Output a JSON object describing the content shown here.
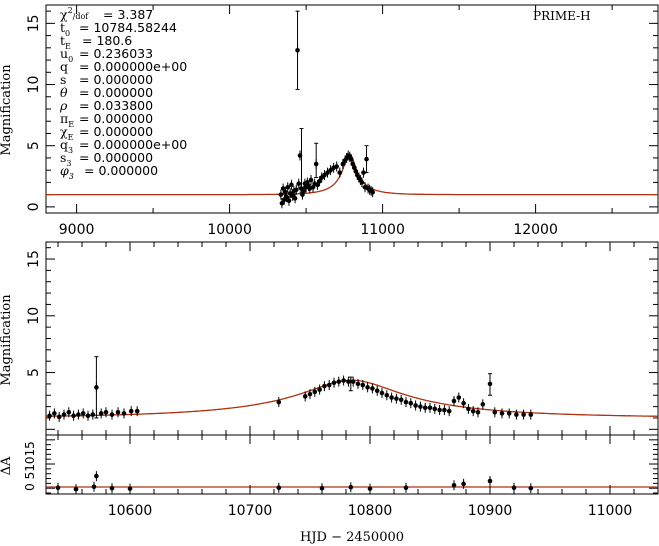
{
  "chart_data": [
    {
      "type": "line",
      "panel": "top",
      "ylabel": "Magnification",
      "xlim": [
        8800,
        12800
      ],
      "ylim": [
        -0.5,
        16.5
      ],
      "xticks": [
        9000,
        10000,
        11000,
        12000
      ],
      "yticks": [
        0,
        5,
        10,
        15
      ],
      "label": "PRIME-H",
      "params": [
        {
          "label": "χ²/dof",
          "value": "= 3.387"
        },
        {
          "label": "t₀",
          "value": "= 10784.58244"
        },
        {
          "label": "t_E",
          "value": "= 180.6"
        },
        {
          "label": "u₀",
          "value": "= 0.236033"
        },
        {
          "label": "q",
          "value": "= 0.000000e+00"
        },
        {
          "label": "s",
          "value": "= 0.000000"
        },
        {
          "label": "θ",
          "value": "= 0.000000"
        },
        {
          "label": "ρ",
          "value": "= 0.033800"
        },
        {
          "label": "π_E",
          "value": "= 0.000000"
        },
        {
          "label": "χ_E",
          "value": "= 0.000000"
        },
        {
          "label": "q₃",
          "value": "= 0.000000e+00"
        },
        {
          "label": "s₃",
          "value": "= 0.000000"
        },
        {
          "label": "φ₃",
          "value": "= 0.000000"
        }
      ],
      "model": {
        "t0": 10784.58244,
        "tE": 180.6,
        "u0": 0.236033,
        "color": "#b03010"
      },
      "points": [
        [
          10335,
          1.0
        ],
        [
          10342,
          0.3
        ],
        [
          10350,
          1.5
        ],
        [
          10358,
          0.6
        ],
        [
          10365,
          1.2
        ],
        [
          10372,
          0.8
        ],
        [
          10380,
          1.6
        ],
        [
          10388,
          0.5
        ],
        [
          10396,
          1.1
        ],
        [
          10404,
          1.8
        ],
        [
          10412,
          0.9
        ],
        [
          10420,
          1.3
        ],
        [
          10428,
          0.7
        ],
        [
          10436,
          1.4
        ],
        [
          10444,
          12.8
        ],
        [
          10452,
          1.9
        ],
        [
          10460,
          4.2
        ],
        [
          10468,
          1.5
        ],
        [
          10476,
          1.0
        ],
        [
          10484,
          1.3
        ],
        [
          10492,
          1.9
        ],
        [
          10500,
          1.6
        ],
        [
          10508,
          2.0
        ],
        [
          10516,
          1.7
        ],
        [
          10524,
          1.5
        ],
        [
          10532,
          2.2
        ],
        [
          10545,
          1.6
        ],
        [
          10556,
          1.9
        ],
        [
          10566,
          3.5
        ],
        [
          10574,
          1.8
        ],
        [
          10588,
          2.1
        ],
        [
          10602,
          2.4
        ],
        [
          10620,
          2.6
        ],
        [
          10640,
          2.8
        ],
        [
          10660,
          3.0
        ],
        [
          10680,
          3.2
        ],
        [
          10700,
          3.3
        ],
        [
          10720,
          2.8
        ],
        [
          10740,
          3.5
        ],
        [
          10755,
          3.8
        ],
        [
          10765,
          4.0
        ],
        [
          10775,
          4.2
        ],
        [
          10785,
          4.1
        ],
        [
          10795,
          3.9
        ],
        [
          10805,
          3.5
        ],
        [
          10815,
          3.2
        ],
        [
          10825,
          2.9
        ],
        [
          10835,
          2.6
        ],
        [
          10845,
          2.4
        ],
        [
          10855,
          2.2
        ],
        [
          10865,
          2.0
        ],
        [
          10875,
          2.8
        ],
        [
          10885,
          1.6
        ],
        [
          10895,
          3.9
        ],
        [
          10905,
          1.5
        ],
        [
          10915,
          1.4
        ],
        [
          10925,
          1.3
        ],
        [
          10935,
          1.2
        ]
      ],
      "big_errorbars": [
        [
          10444,
          9.6,
          16.0
        ],
        [
          10470,
          1.2,
          6.4
        ],
        [
          10566,
          2.4,
          5.2
        ],
        [
          10895,
          2.8,
          5.0
        ]
      ]
    },
    {
      "type": "line",
      "panel": "middle",
      "ylabel": "Magnification",
      "xlim": [
        10530,
        11040
      ],
      "ylim": [
        -0.5,
        16.5
      ],
      "xticks": [
        10600,
        10700,
        10800,
        10900,
        11000
      ],
      "yticks": [
        5,
        10,
        15
      ],
      "model": {
        "t0": 10784.58244,
        "tE": 180.6,
        "u0": 0.236033,
        "color": "#b03010"
      },
      "points": [
        [
          10533,
          1.2
        ],
        [
          10537,
          1.4
        ],
        [
          10541,
          1.1
        ],
        [
          10545,
          1.3
        ],
        [
          10549,
          1.5
        ],
        [
          10553,
          1.2
        ],
        [
          10557,
          1.3
        ],
        [
          10561,
          1.4
        ],
        [
          10565,
          1.2
        ],
        [
          10569,
          1.3
        ],
        [
          10572,
          3.7
        ],
        [
          10576,
          1.4
        ],
        [
          10580,
          1.5
        ],
        [
          10585,
          1.3
        ],
        [
          10590,
          1.5
        ],
        [
          10595,
          1.4
        ],
        [
          10601,
          1.6
        ],
        [
          10606,
          1.6
        ],
        [
          10724,
          2.4
        ],
        [
          10746,
          2.9
        ],
        [
          10750,
          3.1
        ],
        [
          10754,
          3.3
        ],
        [
          10758,
          3.5
        ],
        [
          10762,
          3.8
        ],
        [
          10766,
          3.9
        ],
        [
          10770,
          4.1
        ],
        [
          10774,
          4.2
        ],
        [
          10778,
          4.3
        ],
        [
          10782,
          4.2
        ],
        [
          10786,
          4.2
        ],
        [
          10790,
          4.0
        ],
        [
          10794,
          3.9
        ],
        [
          10798,
          3.7
        ],
        [
          10802,
          3.6
        ],
        [
          10806,
          3.4
        ],
        [
          10810,
          3.2
        ],
        [
          10814,
          3.0
        ],
        [
          10818,
          2.8
        ],
        [
          10822,
          2.7
        ],
        [
          10826,
          2.6
        ],
        [
          10830,
          2.4
        ],
        [
          10834,
          2.3
        ],
        [
          10838,
          2.1
        ],
        [
          10842,
          2.0
        ],
        [
          10846,
          1.9
        ],
        [
          10850,
          1.9
        ],
        [
          10854,
          1.8
        ],
        [
          10858,
          1.7
        ],
        [
          10862,
          1.7
        ],
        [
          10866,
          1.6
        ],
        [
          10870,
          2.5
        ],
        [
          10874,
          2.8
        ],
        [
          10878,
          2.3
        ],
        [
          10882,
          1.8
        ],
        [
          10886,
          1.6
        ],
        [
          10890,
          1.5
        ],
        [
          10894,
          2.2
        ],
        [
          10900,
          4.0
        ],
        [
          10904,
          1.5
        ],
        [
          10910,
          1.4
        ],
        [
          10916,
          1.4
        ],
        [
          10922,
          1.3
        ],
        [
          10928,
          1.3
        ],
        [
          10934,
          1.3
        ]
      ],
      "big_errorbars": [
        [
          10572,
          1.0,
          6.4
        ],
        [
          10900,
          3.0,
          4.9
        ],
        [
          10784,
          3.4,
          4.6
        ]
      ]
    },
    {
      "type": "scatter",
      "panel": "residual",
      "ylabel": "ΔA",
      "xlabel": "HJD − 2450000",
      "xlim": [
        10530,
        11040
      ],
      "ylim": [
        -1.2,
        11
      ],
      "xticks": [
        10600,
        10700,
        10800,
        10900,
        11000
      ],
      "yticks": [
        0,
        5,
        10
      ],
      "ytick_label": "0 51015",
      "points": [
        [
          10540,
          0.1
        ],
        [
          10555,
          -0.2
        ],
        [
          10570,
          0.3
        ],
        [
          10572,
          2.5
        ],
        [
          10585,
          0.0
        ],
        [
          10600,
          -0.1
        ],
        [
          10724,
          0.1
        ],
        [
          10760,
          0.0
        ],
        [
          10784,
          0.2
        ],
        [
          10800,
          -0.1
        ],
        [
          10830,
          0.1
        ],
        [
          10870,
          0.6
        ],
        [
          10878,
          0.9
        ],
        [
          10900,
          1.5
        ],
        [
          10920,
          0.1
        ],
        [
          10934,
          0.0
        ]
      ]
    }
  ]
}
